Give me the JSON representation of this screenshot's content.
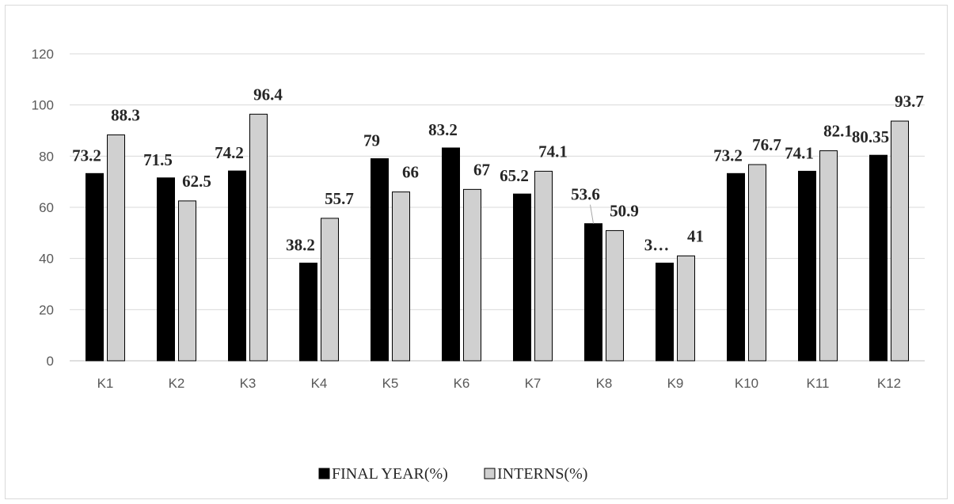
{
  "chart_data": {
    "type": "bar",
    "categories": [
      "K1",
      "K2",
      "K3",
      "K4",
      "K5",
      "K6",
      "K7",
      "K8",
      "K9",
      "K10",
      "K11",
      "K12"
    ],
    "series": [
      {
        "name": "FINAL YEAR(%)",
        "color": "#000000",
        "values": [
          73.2,
          71.5,
          74.2,
          38.2,
          79,
          83.2,
          65.2,
          53.6,
          38.2,
          73.2,
          74.1,
          80.35
        ],
        "labels": [
          "73.2",
          "71.5",
          "74.2",
          "38.2",
          "79",
          "83.2",
          "65.2",
          "53.6",
          "3…",
          "73.2",
          "74.1",
          "80.35"
        ]
      },
      {
        "name": "INTERNS(%)",
        "color": "#d0d0d0",
        "values": [
          88.3,
          62.5,
          96.4,
          55.7,
          66,
          67,
          74.1,
          50.9,
          41,
          76.7,
          82.1,
          93.7
        ],
        "labels": [
          "88.3",
          "62.5",
          "96.4",
          "55.7",
          "66",
          "67",
          "74.1",
          "50.9",
          "41",
          "76.7",
          "82.1",
          "93.7"
        ]
      }
    ],
    "ylim": [
      0,
      120
    ],
    "yticks": [
      0,
      20,
      40,
      60,
      80,
      100,
      120
    ],
    "grid": true,
    "legend_position": "bottom"
  }
}
